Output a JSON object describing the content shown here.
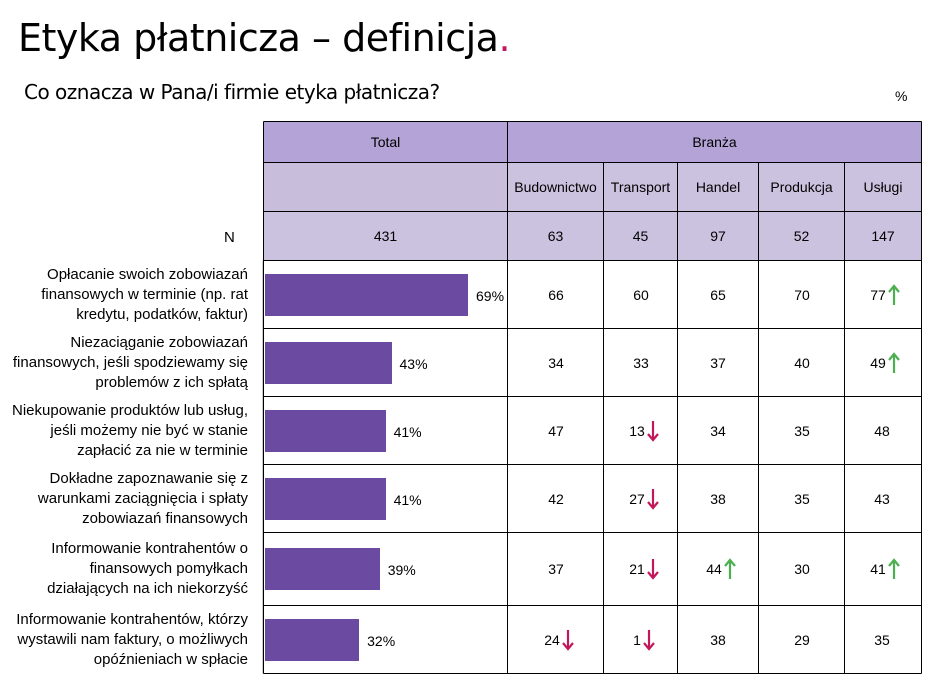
{
  "header": {
    "title": "Etyka płatnicza – definicja",
    "title_dot": ".",
    "subtitle": "Co oznacza w Pana/i firmie etyka płatnicza?",
    "unit": "%"
  },
  "table": {
    "total_label": "Total",
    "branza_label": "Branża",
    "columns": [
      "Budownictwo",
      "Transport",
      "Handel",
      "Produkcja",
      "Usługi"
    ],
    "n_label": "N",
    "n_total": "431",
    "n_values": [
      "63",
      "45",
      "97",
      "52",
      "147"
    ]
  },
  "colors": {
    "bar": "#6a4ba1",
    "header_dark": "#b4a3d6",
    "header_light": "#cbc2df",
    "arrow_up": "#4caf50",
    "arrow_down": "#c2185b",
    "title_dot": "#c2185b"
  },
  "chart_data": {
    "type": "bar",
    "categories": [
      "Opłacanie swoich zobowiazań finansowych w terminie (np. rat kredytu, podatków, faktur)",
      "Niezaciąganie zobowiazań finansowych, jeśli spodziewamy się problemów z ich spłatą",
      "Niekupowanie produktów lub usług, jeśli możemy nie być w stanie zapłacić za nie w terminie",
      "Dokładne zapoznawanie się z warunkami zaciągnięcia i spłaty zobowiazań finansowych",
      "Informowanie kontrahentów o finansowych pomyłkach działających na ich niekorzyść",
      "Informowanie kontrahentów, którzy wystawili nam faktury, o możliwych opóźnieniach w spłacie"
    ],
    "category_lines": [
      [
        "Opłacanie swoich zobowiazań",
        "finansowych w terminie (np. rat",
        "kredytu, podatków, faktur)"
      ],
      [
        "Niezaciąganie zobowiazań",
        "finansowych, jeśli spodziewamy się",
        "problemów z ich spłatą"
      ],
      [
        "Niekupowanie produktów lub usług,",
        "jeśli możemy nie być w stanie",
        "zapłacić za nie w terminie"
      ],
      [
        "Dokładne zapoznawanie się z",
        "warunkami zaciągnięcia i spłaty",
        "zobowiazań finansowych"
      ],
      [
        "Informowanie kontrahentów o",
        "finansowych pomyłkach",
        "działających na ich niekorzyść"
      ],
      [
        "Informowanie kontrahentów, którzy",
        "wystawili nam faktury, o możliwych",
        "opóźnieniach w spłacie"
      ]
    ],
    "values": [
      69,
      43,
      41,
      41,
      39,
      32
    ],
    "value_labels": [
      "69%",
      "43%",
      "41%",
      "41%",
      "39%",
      "32%"
    ],
    "xlim": [
      0,
      100
    ],
    "breakdown": {
      "columns": [
        "Budownictwo",
        "Transport",
        "Handel",
        "Produkcja",
        "Usługi"
      ],
      "rows": [
        [
          66,
          60,
          65,
          70,
          77
        ],
        [
          34,
          33,
          37,
          40,
          49
        ],
        [
          47,
          13,
          34,
          35,
          48
        ],
        [
          42,
          27,
          38,
          35,
          43
        ],
        [
          37,
          21,
          44,
          30,
          41
        ],
        [
          24,
          1,
          38,
          29,
          35
        ]
      ],
      "significance": [
        [
          "",
          "",
          "",
          "",
          "up"
        ],
        [
          "",
          "",
          "",
          "",
          "up"
        ],
        [
          "",
          "down",
          "",
          "",
          ""
        ],
        [
          "",
          "down",
          "",
          "",
          ""
        ],
        [
          "",
          "down",
          "up",
          "",
          "up"
        ],
        [
          "down",
          "down",
          "",
          "",
          ""
        ]
      ]
    }
  }
}
